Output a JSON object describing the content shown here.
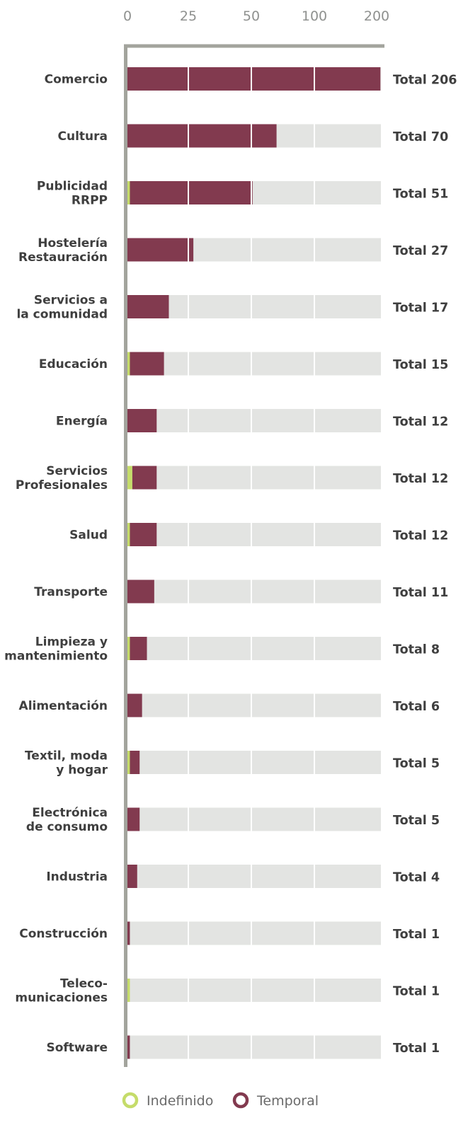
{
  "chart_data": {
    "type": "bar",
    "orientation": "horizontal",
    "stacked": true,
    "x_scale": "piecewise",
    "x_ticks": [
      "0",
      "25",
      "50",
      "100",
      "200"
    ],
    "x_tick_values": [
      0,
      25,
      50,
      100,
      200
    ],
    "categories": [
      [
        "Comercio"
      ],
      [
        "Cultura"
      ],
      [
        "Publicidad",
        "RRPP"
      ],
      [
        "Hostelería",
        "Restauración"
      ],
      [
        "Servicios a",
        "la comunidad"
      ],
      [
        "Educación"
      ],
      [
        "Energía"
      ],
      [
        "Servicios",
        "Profesionales"
      ],
      [
        "Salud"
      ],
      [
        "Transporte"
      ],
      [
        "Limpieza y",
        "mantenimiento"
      ],
      [
        "Alimentación"
      ],
      [
        "Textil, moda",
        "y hogar"
      ],
      [
        "Electrónica",
        "de consumo"
      ],
      [
        "Industria"
      ],
      [
        "Construcción"
      ],
      [
        "Teleco-",
        "municaciones"
      ],
      [
        "Software"
      ]
    ],
    "series": [
      {
        "name": "Indefinido",
        "color": "#c5dc6a",
        "values": [
          0,
          0,
          1,
          0,
          0,
          1,
          0,
          2,
          1,
          0,
          1,
          0,
          1,
          0,
          0,
          0,
          1,
          0
        ]
      },
      {
        "name": "Temporal",
        "color": "#823a4f",
        "values": [
          206,
          70,
          50,
          27,
          17,
          14,
          12,
          10,
          11,
          11,
          7,
          6,
          4,
          5,
          4,
          1,
          0,
          1
        ]
      }
    ],
    "totals": [
      "Total 206",
      "Total 70",
      "Total 51",
      "Total 27",
      "Total 17",
      "Total 15",
      "Total 12",
      "Total 12",
      "Total 12",
      "Total 11",
      "Total 8",
      "Total 6",
      "Total 5",
      "Total 5",
      "Total 4",
      "Total 1",
      "Total 1",
      "Total 1"
    ],
    "xlim": [
      0,
      206
    ],
    "grid": true,
    "legend_position": "bottom",
    "colors": {
      "track": "#e3e4e2",
      "axis": "#a3a49d",
      "grid": "#ffffff"
    }
  }
}
